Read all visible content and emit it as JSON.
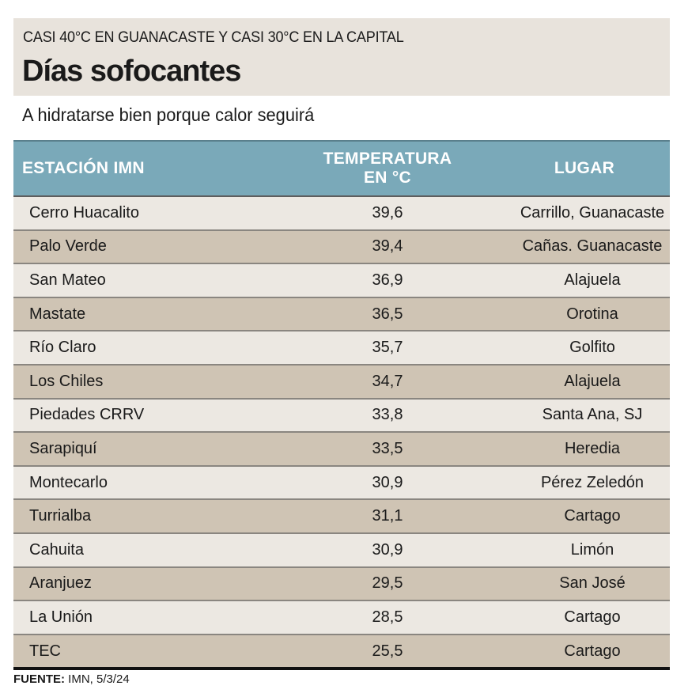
{
  "header": {
    "kicker": "CASI 40°C EN GUANACASTE Y CASI 30°C EN LA CAPITAL",
    "title": "Días sofocantes"
  },
  "subtitle": "A hidratarse bien porque calor seguirá",
  "table": {
    "columns": [
      "ESTACIÓN IMN",
      "TEMPERATURA",
      "EN °C",
      "LUGAR"
    ],
    "rows": [
      [
        "Cerro Huacalito",
        "39,6",
        "Carrillo, Guanacaste"
      ],
      [
        "Palo Verde",
        "39,4",
        "Cañas. Guanacaste"
      ],
      [
        "San Mateo",
        "36,9",
        "Alajuela"
      ],
      [
        "Mastate",
        "36,5",
        "Orotina"
      ],
      [
        "Río Claro",
        "35,7",
        "Golfito"
      ],
      [
        "Los Chiles",
        "34,7",
        "Alajuela"
      ],
      [
        "Piedades CRRV",
        "33,8",
        "Santa Ana, SJ"
      ],
      [
        "Sarapiquí",
        "33,5",
        "Heredia"
      ],
      [
        "Montecarlo",
        "30,9",
        "Pérez Zeledón"
      ],
      [
        "Turrialba",
        "31,1",
        "Cartago"
      ],
      [
        "Cahuita",
        "30,9",
        "Limón"
      ],
      [
        "Aranjuez",
        "29,5",
        "San José"
      ],
      [
        "La Unión",
        "28,5",
        "Cartago"
      ],
      [
        "TEC",
        "25,5",
        "Cartago"
      ]
    ]
  },
  "source": {
    "label": "FUENTE:",
    "text": " IMN, 5/3/24"
  },
  "colors": {
    "header_bg": "#e8e3dc",
    "table_header": "#7aa9b9",
    "row_light": "#ece8e2",
    "row_dark": "#cfc4b4"
  }
}
